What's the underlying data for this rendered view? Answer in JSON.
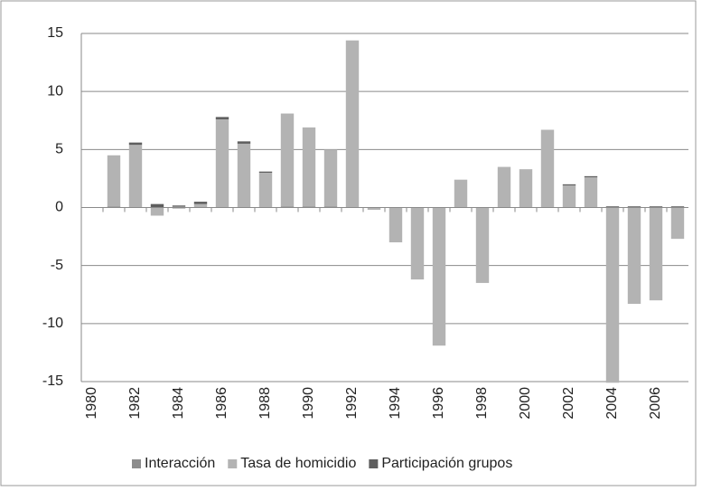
{
  "chart_data": {
    "type": "stacked-bar",
    "categories": [
      "1980",
      null,
      "1982",
      null,
      "1984",
      null,
      "1986",
      null,
      "1988",
      null,
      "1990",
      null,
      "1992",
      null,
      "1994",
      null,
      "1996",
      null,
      "1998",
      null,
      "2000",
      null,
      "2002",
      null,
      "2004",
      null,
      "2006",
      null
    ],
    "series": [
      {
        "name": "Interacción",
        "color": "#8c8c8c",
        "values": [
          0,
          0.1,
          0,
          0,
          0.2,
          0,
          0,
          0,
          0,
          0.1,
          0.1,
          0.1,
          0,
          0,
          0,
          0,
          0,
          0,
          0,
          0,
          0,
          0,
          0,
          0,
          0,
          0,
          0,
          0
        ]
      },
      {
        "name": "Tasa de homicidio",
        "color": "#b3b3b3",
        "values": [
          0,
          4.4,
          5.4,
          -0.7,
          -0.1,
          0.3,
          7.6,
          5.5,
          3.0,
          8.0,
          6.8,
          4.9,
          14.4,
          -0.2,
          -3.0,
          -6.2,
          -11.9,
          2.4,
          -6.5,
          3.5,
          3.3,
          6.7,
          1.9,
          2.6,
          -15.1,
          -8.3,
          -8.0,
          -2.7
        ]
      },
      {
        "name": "Participación grupos",
        "color": "#5e5e5e",
        "values": [
          0,
          0,
          0.2,
          0.3,
          0,
          0.2,
          0.2,
          0.2,
          0.1,
          0,
          0,
          0,
          0,
          0,
          0,
          0,
          0,
          0,
          0,
          0,
          0,
          0,
          0.1,
          0.1,
          0.1,
          0.1,
          0.1,
          0.1
        ]
      }
    ],
    "ylim": [
      -15,
      15
    ],
    "yticks": [
      -15,
      -10,
      -5,
      0,
      5,
      10,
      15
    ],
    "grid": true,
    "legend": "bottom"
  }
}
